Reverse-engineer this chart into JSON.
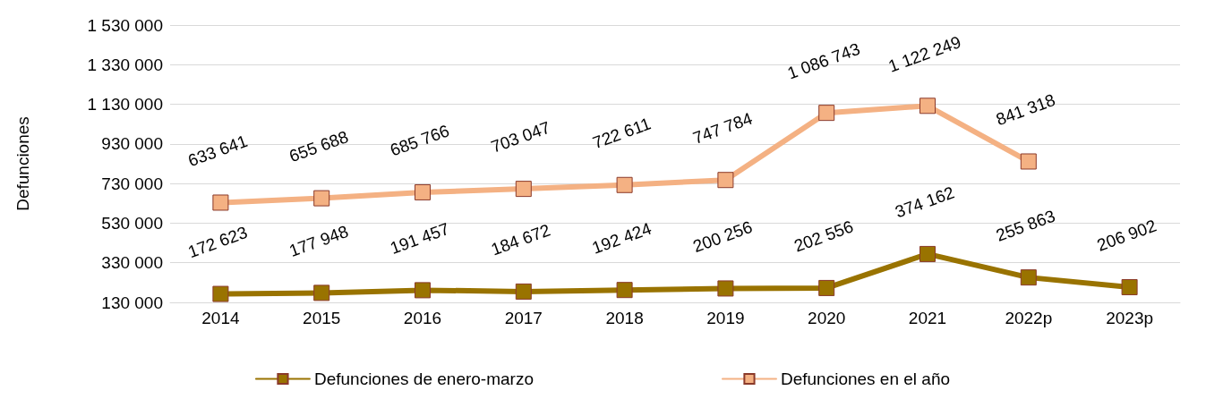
{
  "chart_data": {
    "type": "line",
    "ylabel": "Defunciones",
    "categories": [
      "2014",
      "2015",
      "2016",
      "2017",
      "2018",
      "2019",
      "2020",
      "2021",
      "2022p",
      "2023p"
    ],
    "series": [
      {
        "name": "Defunciones de enero-marzo",
        "color": "#997300",
        "values": [
          172623,
          177948,
          191457,
          184672,
          192424,
          200256,
          202556,
          374162,
          255863,
          206902
        ],
        "value_labels": [
          "172 623",
          "177 948",
          "191 457",
          "184 672",
          "192 424",
          "200 256",
          "202 556",
          "374 162",
          "255 863",
          "206 902"
        ]
      },
      {
        "name": "Defunciones en el año",
        "color": "#f4b183",
        "values": [
          633641,
          655688,
          685766,
          703047,
          722611,
          747784,
          1086743,
          1122249,
          841318,
          null
        ],
        "value_labels": [
          "633 641",
          "655 688",
          "685 766",
          "703 047",
          "722 611",
          "747 784",
          "1 086 743",
          "1 122 249",
          "841 318",
          null
        ]
      }
    ],
    "ylim": [
      130000,
      1530000
    ],
    "yticks": [
      {
        "value": 130000,
        "label": "130 000"
      },
      {
        "value": 330000,
        "label": "330 000"
      },
      {
        "value": 530000,
        "label": "530 000"
      },
      {
        "value": 730000,
        "label": "730 000"
      },
      {
        "value": 930000,
        "label": "930 000"
      },
      {
        "value": 1130000,
        "label": "1 130 000"
      },
      {
        "value": 1330000,
        "label": "1 330 000"
      },
      {
        "value": 1530000,
        "label": "1 530 000"
      }
    ],
    "grid": "y",
    "legend": "bottom",
    "marker": "square",
    "line_style": "solid"
  }
}
